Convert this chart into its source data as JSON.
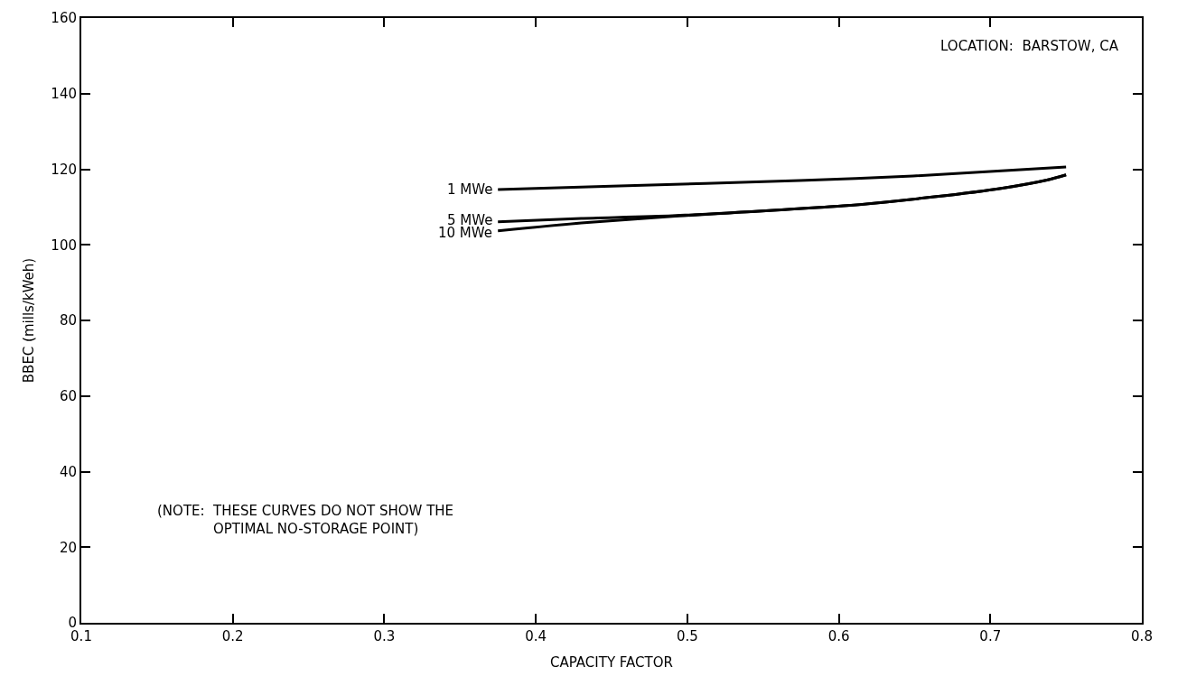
{
  "chart_data": {
    "type": "line",
    "xlabel": "CAPACITY FACTOR",
    "ylabel": "BBEC (mills/kWeh)",
    "xlim": [
      0.1,
      0.8
    ],
    "xticks": [
      {
        "value": 0.1,
        "label": "0.1"
      },
      {
        "value": 0.2,
        "label": "0.2"
      },
      {
        "value": 0.3,
        "label": "0.3"
      },
      {
        "value": 0.4,
        "label": "0.4"
      },
      {
        "value": 0.5,
        "label": "0.5"
      },
      {
        "value": 0.6,
        "label": "0.6"
      },
      {
        "value": 0.7,
        "label": "0.7"
      },
      {
        "value": 0.8,
        "label": "0.8"
      }
    ],
    "ylim": [
      0,
      160
    ],
    "yticks": [
      0,
      20,
      40,
      60,
      80,
      100,
      120,
      140,
      160
    ],
    "legend": false,
    "marker": "none",
    "line_style": "solid",
    "series": [
      {
        "name": "1 MWe",
        "color": "#000000",
        "x": [
          0.375,
          0.45,
          0.574,
          0.649,
          0.75
        ],
        "values": [
          114.6,
          115.5,
          117.0,
          118.2,
          120.6
        ]
      },
      {
        "name": "5 MWe",
        "color": "#000000",
        "x": [
          0.375,
          0.43,
          0.49,
          0.603,
          0.663,
          0.708,
          0.738,
          0.75
        ],
        "values": [
          106.1,
          107.0,
          107.7,
          110.3,
          112.7,
          115.0,
          117.2,
          118.5
        ]
      },
      {
        "name": "10 MWe",
        "color": "#000000",
        "x": [
          0.375,
          0.43,
          0.49,
          0.603,
          0.663,
          0.708,
          0.738,
          0.75
        ],
        "values": [
          103.7,
          105.8,
          107.5,
          110.3,
          112.7,
          115.0,
          117.2,
          118.5
        ]
      }
    ],
    "annotations": [
      "LOCATION:  BARSTOW, CA",
      "(NOTE:  THESE CURVES DO NOT SHOW THE\n             OPTIMAL NO-STORAGE POINT)"
    ]
  }
}
